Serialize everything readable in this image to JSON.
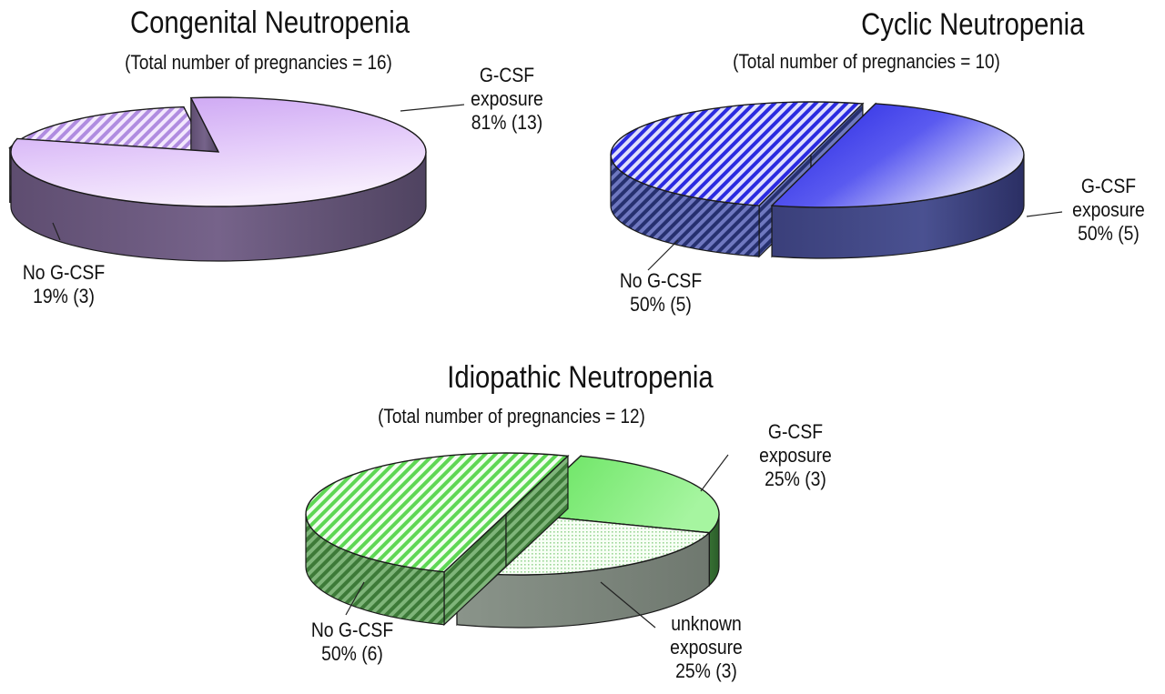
{
  "chart_data": [
    {
      "type": "pie",
      "title": "Congenital Neutropenia",
      "subtitle": "(Total number of pregnancies = 16)",
      "slices": [
        {
          "id": "gcsf",
          "lines": [
            "G-CSF",
            "exposure",
            "81% (13)"
          ],
          "percent": 81,
          "count": 13,
          "pattern": "solid",
          "color_top": "#cfa5f2",
          "color_light": "#ead5fb",
          "color_side": "#6f5a80"
        },
        {
          "id": "no",
          "lines": [
            "No G-CSF",
            "19% (3)"
          ],
          "percent": 19,
          "count": 3,
          "pattern": "hatch",
          "color_top": "#bb95e8",
          "color_light": "#ffffff",
          "color_side": "#7d6499",
          "exploded": true
        }
      ]
    },
    {
      "type": "pie",
      "title": "Cyclic Neutropenia",
      "subtitle": "(Total number of pregnancies = 10)",
      "slices": [
        {
          "id": "gcsf",
          "lines": [
            "G-CSF",
            "exposure",
            "50% (5)"
          ],
          "percent": 50,
          "count": 5,
          "pattern": "solid",
          "color_top": "#3b3be6",
          "color_light": "#d6d6f7",
          "color_side": "#3d3f7e"
        },
        {
          "id": "no",
          "lines": [
            "No G-CSF",
            "50% (5)"
          ],
          "percent": 50,
          "count": 5,
          "pattern": "hatch",
          "color_top": "#3434e8",
          "color_light": "#ffffff",
          "color_side": "#2d3b85",
          "exploded": true
        }
      ]
    },
    {
      "type": "pie",
      "title": "Idiopathic Neutropenia",
      "subtitle": "(Total number of pregnancies = 12)",
      "slices": [
        {
          "id": "gcsf",
          "lines": [
            "G-CSF",
            "exposure",
            "25% (3)"
          ],
          "percent": 25,
          "count": 3,
          "pattern": "solid",
          "color_top": "#79ec73",
          "color_light": "#e9fbe6",
          "color_side": "#3f7f3a"
        },
        {
          "id": "unknown",
          "lines": [
            "unknown",
            "exposure",
            "25% (3)"
          ],
          "percent": 25,
          "count": 3,
          "pattern": "dots",
          "color_top": "#9fd99a",
          "color_light": "#fafff8",
          "color_side": "#8a968a"
        },
        {
          "id": "no",
          "lines": [
            "No G-CSF",
            "50% (6)"
          ],
          "percent": 50,
          "count": 6,
          "pattern": "hatch",
          "color_top": "#5fdc55",
          "color_light": "#ffffff",
          "color_side": "#4b8744",
          "exploded": true
        }
      ]
    }
  ]
}
